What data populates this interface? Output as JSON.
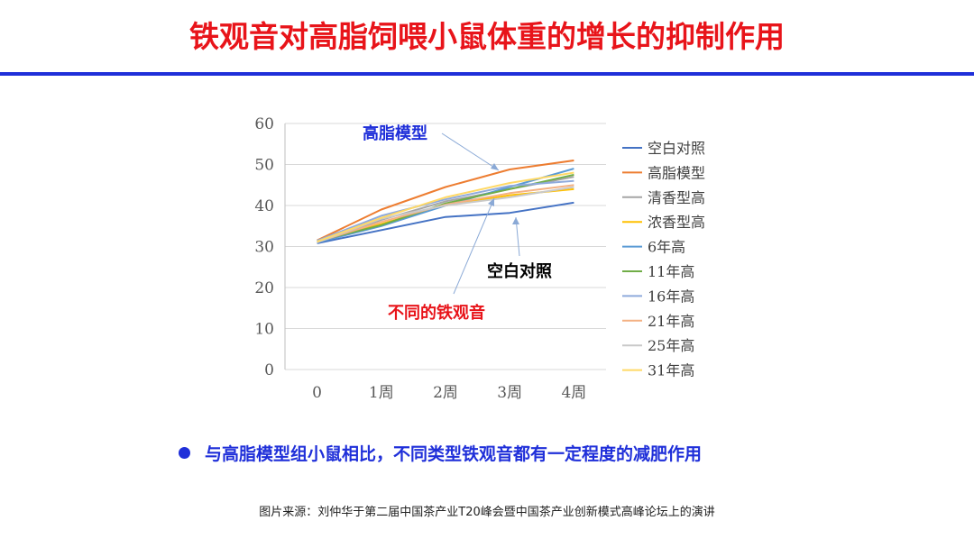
{
  "slide": {
    "title": "铁观音对高脂饲喂小鼠体重的增长的抑制作用",
    "bullet": "与高脂模型组小鼠相比，不同类型铁观音都有一定程度的减肥作用",
    "source": "图片来源：刘仲华于第二届中国茶产业T20峰会暨中国茶产业创新模式高峰论坛上的演讲",
    "accent_color": "#e8141a",
    "rule_color": "#1f2fd9"
  },
  "chart_data": {
    "type": "line",
    "categories": [
      "0",
      "1周",
      "2周",
      "3周",
      "4周"
    ],
    "ylim": [
      0,
      60
    ],
    "yticks": [
      0,
      10,
      20,
      30,
      40,
      50,
      60
    ],
    "grid": true,
    "legend_position": "right",
    "series": [
      {
        "name": "空白对照",
        "color": "#4472c4",
        "values": [
          30.8,
          34.0,
          37.2,
          38.2,
          40.7
        ]
      },
      {
        "name": "高脂模型",
        "color": "#ed7d31",
        "values": [
          31.5,
          39.0,
          44.5,
          48.8,
          51.0
        ]
      },
      {
        "name": "清香型高",
        "color": "#a5a5a5",
        "values": [
          31.0,
          36.5,
          41.0,
          44.0,
          47.0
        ]
      },
      {
        "name": "浓香型高",
        "color": "#ffc000",
        "values": [
          31.2,
          35.5,
          40.0,
          42.5,
          44.0
        ]
      },
      {
        "name": "6年高",
        "color": "#5b9bd5",
        "values": [
          31.0,
          35.0,
          40.0,
          44.5,
          49.0
        ]
      },
      {
        "name": "11年高",
        "color": "#70ad47",
        "values": [
          31.3,
          35.2,
          40.5,
          44.0,
          47.5
        ]
      },
      {
        "name": "16年高",
        "color": "#8faadc",
        "values": [
          31.4,
          37.5,
          41.5,
          44.8,
          46.0
        ]
      },
      {
        "name": "21年高",
        "color": "#f4b183",
        "values": [
          31.1,
          36.0,
          40.2,
          43.0,
          45.0
        ]
      },
      {
        "name": "25年高",
        "color": "#c9c9c9",
        "values": [
          31.0,
          36.8,
          40.0,
          42.0,
          44.5
        ]
      },
      {
        "name": "31年高",
        "color": "#ffd966",
        "values": [
          31.2,
          37.0,
          42.0,
          45.5,
          48.0
        ]
      }
    ],
    "annotations": [
      {
        "text": "高脂模型",
        "color": "#1f2fd9"
      },
      {
        "text": "空白对照",
        "color": "#000000"
      },
      {
        "text": "不同的铁观音",
        "color": "#e8141a"
      }
    ]
  }
}
